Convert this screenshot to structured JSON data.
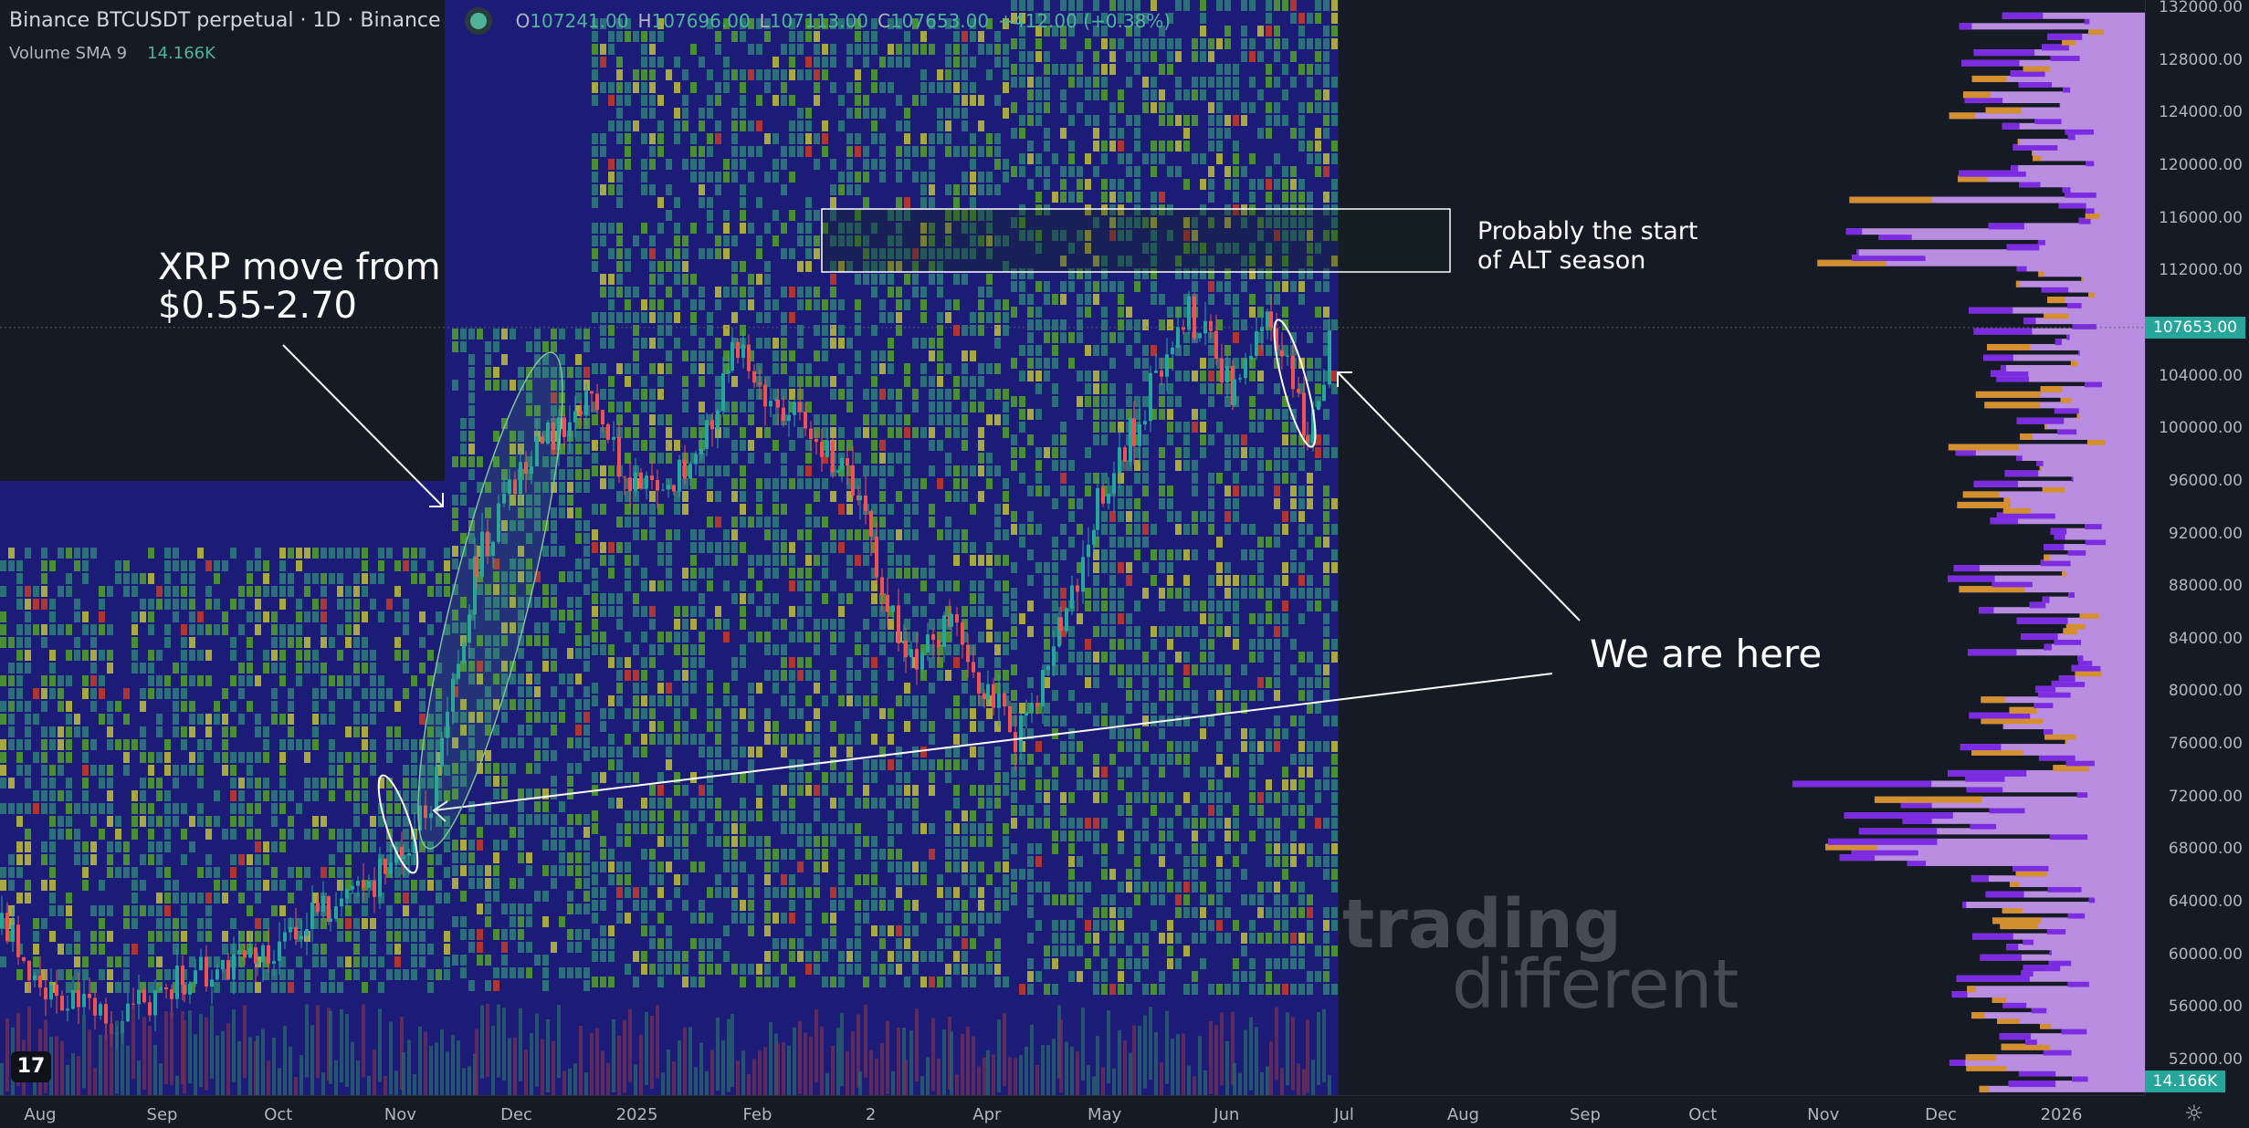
{
  "header": {
    "title": "Binance BTCUSDT perpetual · 1D · Binance",
    "ohlc": {
      "o_label": "O",
      "o": "107241.00",
      "h_label": "H",
      "h": "107696.00",
      "l_label": "L",
      "l": "107113.00",
      "c_label": "C",
      "c": "107653.00",
      "change": "+412.00 (+0.38%)"
    },
    "indicator": "Volume SMA 9",
    "indicator_value": "14.166K"
  },
  "price_axis": {
    "ticks": [
      "132000.00",
      "128000.00",
      "124000.00",
      "120000.00",
      "116000.00",
      "112000.00",
      "104000.00",
      "100000.00",
      "96000.00",
      "92000.00",
      "88000.00",
      "84000.00",
      "80000.00",
      "76000.00",
      "72000.00",
      "68000.00",
      "64000.00",
      "60000.00",
      "56000.00",
      "52000.00"
    ],
    "last_price": "107653.00",
    "volume_label": "14.166K"
  },
  "time_axis": {
    "ticks": [
      "Aug",
      "Sep",
      "Oct",
      "Nov",
      "Dec",
      "2025",
      "Feb",
      "2",
      "Apr",
      "May",
      "Jun",
      "Jul",
      "Aug",
      "Sep",
      "Oct",
      "Nov",
      "Dec",
      "2026"
    ]
  },
  "annotations": {
    "xrp": "XRP move from\n$0.55-2.70",
    "alt": "Probably the start\nof ALT season",
    "here": "We are here"
  },
  "watermark": {
    "line1": "trading",
    "line2": "different"
  },
  "colors": {
    "up": "#26a69a",
    "down": "#ef5350",
    "heatmap_bg": "#1c1c78",
    "profile": "#b98ee0",
    "profile_dark": "#7b2be0",
    "profile_orange": "#d4902e"
  }
}
